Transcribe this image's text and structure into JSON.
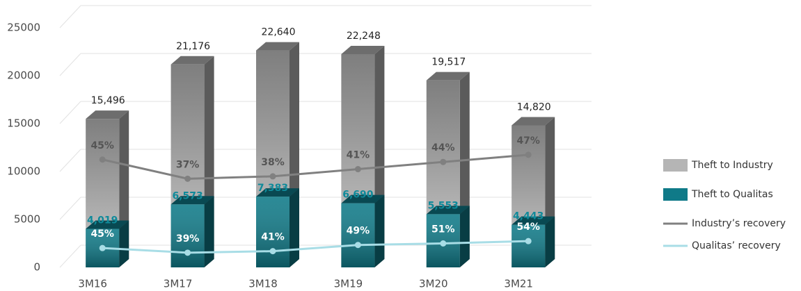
{
  "chart_data": {
    "type": "bar",
    "categories": [
      "3M16",
      "3M17",
      "3M18",
      "3M19",
      "3M20",
      "3M21"
    ],
    "series": [
      {
        "name": "Theft to Industry",
        "color": "#b5b5b5",
        "values": [
          15496,
          21176,
          22640,
          22248,
          19517,
          14820
        ],
        "value_labels": [
          "15,496",
          "21,176",
          "22,640",
          "22,248",
          "19,517",
          "14,820"
        ]
      },
      {
        "name": "Theft to Qualitas",
        "color": "#0f7a88",
        "values": [
          4019,
          6573,
          7383,
          6690,
          5553,
          4443
        ],
        "value_labels": [
          "4,019",
          "6,573",
          "7,383",
          "6,690",
          "5,553",
          "4,443"
        ]
      },
      {
        "name": "Industry’s recovery",
        "type": "line",
        "axis": "y2",
        "color": "#808080",
        "values": [
          45,
          37,
          38,
          41,
          44,
          47
        ],
        "value_labels": [
          "45%",
          "37%",
          "38%",
          "41%",
          "44%",
          "47%"
        ]
      },
      {
        "name": "Qualitas’ recovery",
        "type": "line",
        "axis": "y3",
        "color": "#a8dde6",
        "values": [
          45,
          39,
          41,
          49,
          51,
          54
        ],
        "value_labels": [
          "45%",
          "39%",
          "41%",
          "49%",
          "51%",
          "54%"
        ]
      }
    ],
    "ylim": [
      0,
      25000
    ],
    "yticks": [
      0,
      5000,
      10000,
      15000,
      20000,
      25000
    ],
    "y2lim": [
      0,
      100
    ],
    "y3lim": [
      20,
      330
    ],
    "grid": true,
    "legend": "right"
  }
}
